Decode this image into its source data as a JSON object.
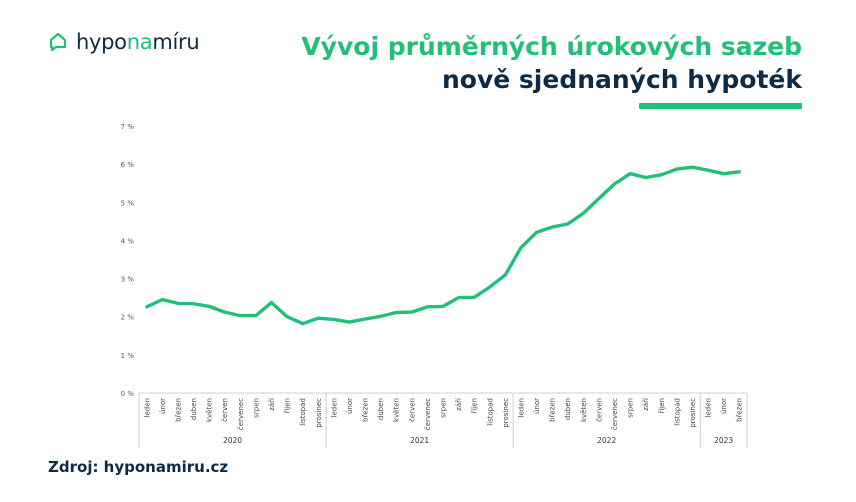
{
  "brand": {
    "name_part1": "hypo",
    "name_part2": "na",
    "name_part3": "míru",
    "icon": "house-chat-icon",
    "accent_color": "#22bf7a",
    "dark_color": "#0d2b44"
  },
  "title": {
    "line1": "Vývoj průměrných úrokových sazeb",
    "line2": "nově sjednaných hypoték"
  },
  "source": "Zdroj: hyponamiru.cz",
  "chart_data": {
    "type": "line",
    "title": "Vývoj průměrných úrokových sazeb nově sjednaných hypoték",
    "xlabel": "",
    "ylabel": "",
    "ylim": [
      0,
      7
    ],
    "yticks": [
      "0 %",
      "1 %",
      "2 %",
      "3 %",
      "4 %",
      "5 %",
      "6 %",
      "7 %"
    ],
    "grid": false,
    "line_color": "#22bf7a",
    "categories": [
      "leden",
      "únor",
      "březen",
      "duben",
      "květen",
      "červen",
      "červenec",
      "srpen",
      "září",
      "říjen",
      "listopad",
      "prosinec",
      "leden",
      "únor",
      "březen",
      "duben",
      "květen",
      "červen",
      "červenec",
      "srpen",
      "září",
      "říjen",
      "listopad",
      "prosinec",
      "leden",
      "únor",
      "březen",
      "duben",
      "květen",
      "červen",
      "červenec",
      "srpen",
      "září",
      "říjen",
      "listopad",
      "prosinec",
      "leden",
      "únor",
      "březen"
    ],
    "years": [
      {
        "label": "2020",
        "count": 12
      },
      {
        "label": "2021",
        "count": 12
      },
      {
        "label": "2022",
        "count": 12
      },
      {
        "label": "2023",
        "count": 3
      }
    ],
    "series": [
      {
        "values": [
          2.26,
          2.45,
          2.35,
          2.34,
          2.27,
          2.12,
          2.03,
          2.03,
          2.37,
          2.0,
          1.82,
          1.96,
          1.93,
          1.86,
          1.94,
          2.01,
          2.11,
          2.12,
          2.26,
          2.27,
          2.5,
          2.51,
          2.78,
          3.1,
          3.81,
          4.21,
          4.35,
          4.43,
          4.71,
          5.1,
          5.48,
          5.75,
          5.65,
          5.72,
          5.87,
          5.92,
          5.84,
          5.75,
          5.8
        ]
      }
    ]
  }
}
